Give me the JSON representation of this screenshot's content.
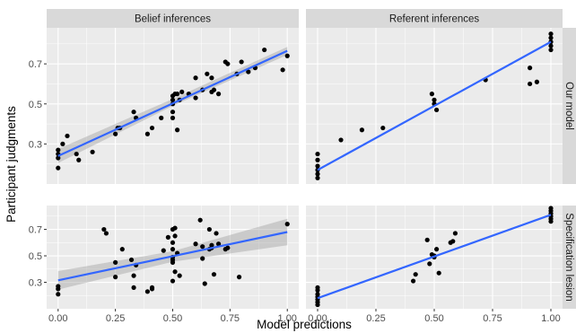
{
  "chart_data": {
    "type": "scatter",
    "xlabel": "Model predictions",
    "ylabel": "Participant judgments",
    "xlim": [
      -0.05,
      1.05
    ],
    "ylim": [
      0.1,
      0.88
    ],
    "x_ticks": [
      0.0,
      0.25,
      0.5,
      0.75,
      1.0
    ],
    "x_tick_labels": [
      "0.00",
      "0.25",
      "0.50",
      "0.75",
      "1.00"
    ],
    "y_ticks": [
      0.3,
      0.5,
      0.7
    ],
    "y_tick_labels": [
      "0.3",
      "0.5",
      "0.7"
    ],
    "grid": true,
    "fit_color": "#3366ff",
    "point_color": "#000000",
    "band_color": "#999999",
    "col_facets": [
      "Belief inferences",
      "Referent inferences"
    ],
    "row_facets": [
      "Our model",
      "Specification lesion"
    ],
    "panels": [
      {
        "col": 0,
        "row": 0,
        "fit": {
          "x0": 0.0,
          "y0": 0.24,
          "x1": 1.0,
          "y1": 0.765
        },
        "band": {
          "lower": [
            0.205,
            0.49,
            0.745
          ],
          "upper": [
            0.275,
            0.525,
            0.785
          ]
        },
        "points": [
          [
            0.0,
            0.18
          ],
          [
            0.0,
            0.23
          ],
          [
            0.0,
            0.25
          ],
          [
            0.0,
            0.27
          ],
          [
            0.02,
            0.3
          ],
          [
            0.04,
            0.34
          ],
          [
            0.08,
            0.25
          ],
          [
            0.09,
            0.22
          ],
          [
            0.15,
            0.26
          ],
          [
            0.25,
            0.35
          ],
          [
            0.26,
            0.38
          ],
          [
            0.27,
            0.38
          ],
          [
            0.33,
            0.46
          ],
          [
            0.34,
            0.43
          ],
          [
            0.39,
            0.35
          ],
          [
            0.41,
            0.38
          ],
          [
            0.45,
            0.43
          ],
          [
            0.5,
            0.43
          ],
          [
            0.5,
            0.46
          ],
          [
            0.5,
            0.5
          ],
          [
            0.5,
            0.52
          ],
          [
            0.5,
            0.54
          ],
          [
            0.51,
            0.55
          ],
          [
            0.52,
            0.55
          ],
          [
            0.52,
            0.37
          ],
          [
            0.53,
            0.52
          ],
          [
            0.54,
            0.56
          ],
          [
            0.57,
            0.55
          ],
          [
            0.6,
            0.63
          ],
          [
            0.6,
            0.53
          ],
          [
            0.63,
            0.57
          ],
          [
            0.65,
            0.65
          ],
          [
            0.67,
            0.63
          ],
          [
            0.67,
            0.56
          ],
          [
            0.68,
            0.57
          ],
          [
            0.7,
            0.55
          ],
          [
            0.73,
            0.71
          ],
          [
            0.74,
            0.7
          ],
          [
            0.78,
            0.65
          ],
          [
            0.8,
            0.71
          ],
          [
            0.83,
            0.66
          ],
          [
            0.86,
            0.68
          ],
          [
            0.9,
            0.77
          ],
          [
            0.98,
            0.67
          ],
          [
            1.0,
            0.74
          ]
        ]
      },
      {
        "col": 1,
        "row": 0,
        "fit": {
          "x0": 0.0,
          "y0": 0.17,
          "x1": 1.0,
          "y1": 0.81
        },
        "band": null,
        "points": [
          [
            0.0,
            0.13
          ],
          [
            0.0,
            0.15
          ],
          [
            0.0,
            0.17
          ],
          [
            0.0,
            0.19
          ],
          [
            0.0,
            0.22
          ],
          [
            0.0,
            0.25
          ],
          [
            0.1,
            0.32
          ],
          [
            0.19,
            0.37
          ],
          [
            0.28,
            0.38
          ],
          [
            0.49,
            0.55
          ],
          [
            0.5,
            0.52
          ],
          [
            0.5,
            0.5
          ],
          [
            0.51,
            0.47
          ],
          [
            0.72,
            0.62
          ],
          [
            0.91,
            0.68
          ],
          [
            0.91,
            0.6
          ],
          [
            0.94,
            0.61
          ],
          [
            1.0,
            0.77
          ],
          [
            1.0,
            0.79
          ],
          [
            1.0,
            0.81
          ],
          [
            1.0,
            0.83
          ],
          [
            1.0,
            0.85
          ]
        ]
      },
      {
        "col": 0,
        "row": 1,
        "fit": {
          "x0": 0.0,
          "y0": 0.315,
          "x1": 1.0,
          "y1": 0.68
        },
        "band": {
          "lower": [
            0.245,
            0.455,
            0.58
          ],
          "upper": [
            0.385,
            0.535,
            0.78
          ]
        },
        "points": [
          [
            0.0,
            0.21
          ],
          [
            0.0,
            0.25
          ],
          [
            0.0,
            0.27
          ],
          [
            0.2,
            0.7
          ],
          [
            0.21,
            0.67
          ],
          [
            0.25,
            0.45
          ],
          [
            0.25,
            0.34
          ],
          [
            0.28,
            0.55
          ],
          [
            0.32,
            0.47
          ],
          [
            0.33,
            0.35
          ],
          [
            0.33,
            0.26
          ],
          [
            0.34,
            0.43
          ],
          [
            0.39,
            0.23
          ],
          [
            0.41,
            0.25
          ],
          [
            0.41,
            0.26
          ],
          [
            0.46,
            0.54
          ],
          [
            0.48,
            0.64
          ],
          [
            0.5,
            0.7
          ],
          [
            0.5,
            0.6
          ],
          [
            0.5,
            0.55
          ],
          [
            0.5,
            0.49
          ],
          [
            0.5,
            0.47
          ],
          [
            0.5,
            0.45
          ],
          [
            0.5,
            0.31
          ],
          [
            0.51,
            0.71
          ],
          [
            0.51,
            0.65
          ],
          [
            0.51,
            0.38
          ],
          [
            0.52,
            0.52
          ],
          [
            0.53,
            0.35
          ],
          [
            0.6,
            0.59
          ],
          [
            0.62,
            0.77
          ],
          [
            0.63,
            0.57
          ],
          [
            0.63,
            0.48
          ],
          [
            0.64,
            0.29
          ],
          [
            0.66,
            0.55
          ],
          [
            0.66,
            0.7
          ],
          [
            0.67,
            0.56
          ],
          [
            0.67,
            0.58
          ],
          [
            0.68,
            0.36
          ],
          [
            0.69,
            0.67
          ],
          [
            0.7,
            0.59
          ],
          [
            0.73,
            0.55
          ],
          [
            0.74,
            0.56
          ],
          [
            0.79,
            0.34
          ],
          [
            1.0,
            0.74
          ]
        ]
      },
      {
        "col": 1,
        "row": 1,
        "fit": {
          "x0": 0.0,
          "y0": 0.18,
          "x1": 1.0,
          "y1": 0.81
        },
        "band": null,
        "points": [
          [
            0.0,
            0.13
          ],
          [
            0.0,
            0.15
          ],
          [
            0.0,
            0.17
          ],
          [
            0.0,
            0.19
          ],
          [
            0.0,
            0.21
          ],
          [
            0.0,
            0.24
          ],
          [
            0.0,
            0.26
          ],
          [
            0.41,
            0.31
          ],
          [
            0.42,
            0.36
          ],
          [
            0.47,
            0.62
          ],
          [
            0.48,
            0.44
          ],
          [
            0.49,
            0.51
          ],
          [
            0.5,
            0.49
          ],
          [
            0.5,
            0.5
          ],
          [
            0.51,
            0.55
          ],
          [
            0.52,
            0.37
          ],
          [
            0.57,
            0.6
          ],
          [
            0.58,
            0.61
          ],
          [
            0.59,
            0.67
          ],
          [
            1.0,
            0.76
          ],
          [
            1.0,
            0.78
          ],
          [
            1.0,
            0.8
          ],
          [
            1.0,
            0.82
          ],
          [
            1.0,
            0.84
          ],
          [
            1.0,
            0.86
          ]
        ]
      }
    ]
  }
}
